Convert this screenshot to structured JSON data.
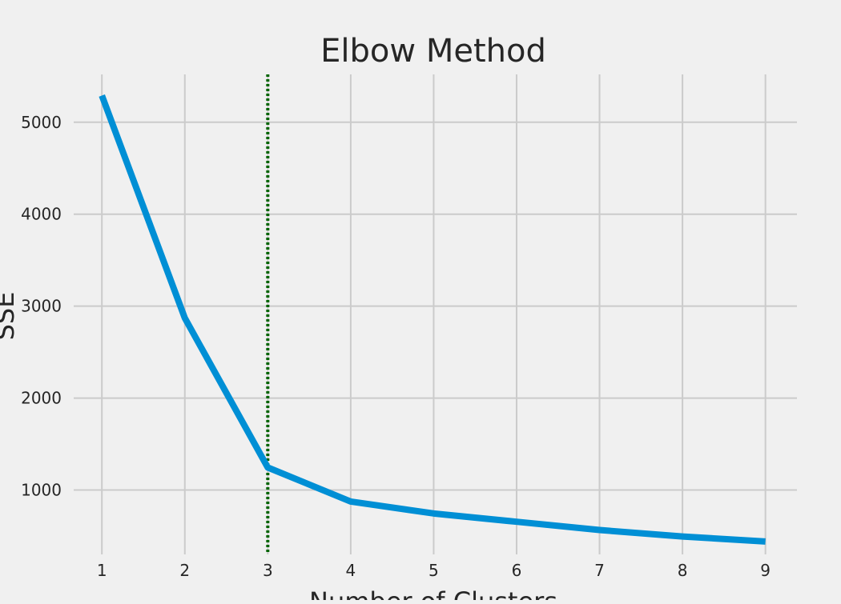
{
  "chart_data": {
    "type": "line",
    "title": "Elbow Method",
    "xlabel": "Number of Clusters",
    "ylabel": "SSE",
    "x": [
      1,
      2,
      3,
      4,
      5,
      6,
      7,
      8,
      9
    ],
    "series": [
      {
        "values": [
          5290,
          2870,
          1245,
          875,
          745,
          655,
          565,
          495,
          440
        ],
        "color": "#008fd5"
      }
    ],
    "xticks": [
      1,
      2,
      3,
      4,
      5,
      6,
      7,
      8,
      9
    ],
    "yticks": [
      1000,
      2000,
      3000,
      4000,
      5000
    ],
    "xlim": [
      0.66,
      9.38
    ],
    "ylim": [
      300,
      5520
    ],
    "grid": true,
    "annotations": [
      {
        "type": "vline",
        "x": 3,
        "color": "#006400",
        "style": "dotted"
      }
    ]
  }
}
